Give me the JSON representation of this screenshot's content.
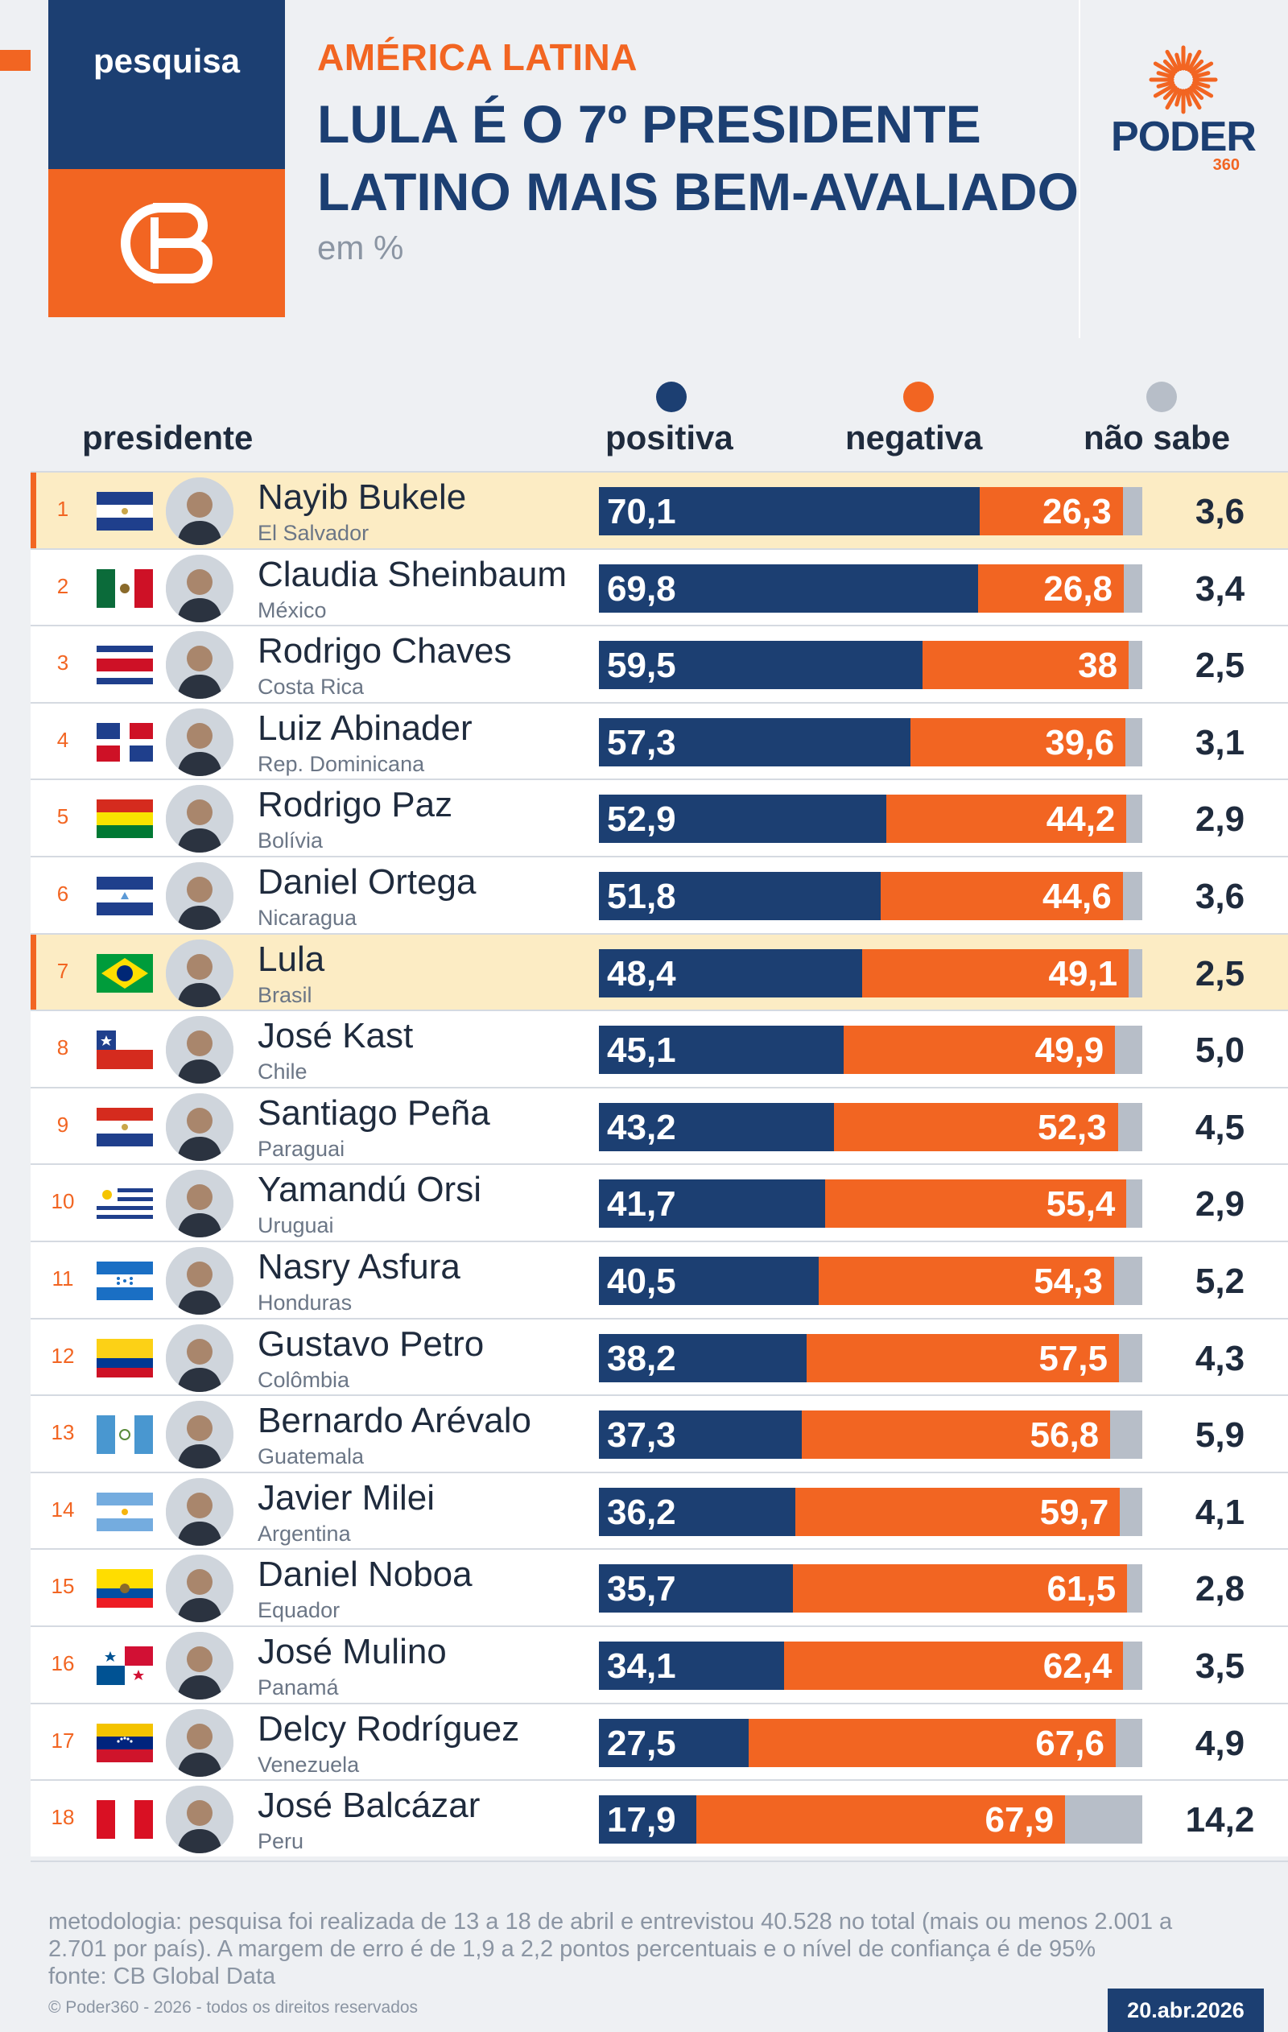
{
  "header": {
    "tag": "pesquisa",
    "kicker": "AMÉRICA LATINA",
    "title_line1": "LULA É O 7º PRESIDENTE",
    "title_line2": "LATINO MAIS BEM-AVALIADO",
    "subtitle": "em %",
    "brand_word": "PODER",
    "brand_number": "360",
    "brand_icon": "sun-burst-icon",
    "badge_icon": "cb-monogram-icon"
  },
  "columns": {
    "president": "presidente",
    "positive": "positiva",
    "negative": "negativa",
    "unknown": "não sabe"
  },
  "colors": {
    "positive": "#1c3f72",
    "negative": "#f26522",
    "unknown": "#b7bec8",
    "highlight": "#fcecc4"
  },
  "chart_data": {
    "type": "bar",
    "stacked": true,
    "orientation": "horizontal",
    "title": "LULA É O 7º PRESIDENTE LATINO MAIS BEM-AVALIADO",
    "subtitle": "em %",
    "series_names": [
      "positiva",
      "negativa",
      "não sabe"
    ],
    "rows": [
      {
        "rank": "1",
        "name": "Nayib Bukele",
        "country": "El Salvador",
        "flag": "flag-el-salvador",
        "positive": "70,1",
        "negative": "26,3",
        "unknown": "3,6",
        "highlight": true
      },
      {
        "rank": "2",
        "name": "Claudia Sheinbaum",
        "country": "México",
        "flag": "flag-mexico",
        "positive": "69,8",
        "negative": "26,8",
        "unknown": "3,4",
        "highlight": false
      },
      {
        "rank": "3",
        "name": "Rodrigo Chaves",
        "country": "Costa Rica",
        "flag": "flag-costa-rica",
        "positive": "59,5",
        "negative": "38",
        "unknown": "2,5",
        "highlight": false
      },
      {
        "rank": "4",
        "name": "Luiz Abinader",
        "country": "Rep. Dominicana",
        "flag": "flag-dominican-republic",
        "positive": "57,3",
        "negative": "39,6",
        "unknown": "3,1",
        "highlight": false
      },
      {
        "rank": "5",
        "name": "Rodrigo Paz",
        "country": "Bolívia",
        "flag": "flag-bolivia",
        "positive": "52,9",
        "negative": "44,2",
        "unknown": "2,9",
        "highlight": false
      },
      {
        "rank": "6",
        "name": "Daniel Ortega",
        "country": "Nicaragua",
        "flag": "flag-nicaragua",
        "positive": "51,8",
        "negative": "44,6",
        "unknown": "3,6",
        "highlight": false
      },
      {
        "rank": "7",
        "name": "Lula",
        "country": "Brasil",
        "flag": "flag-brazil",
        "positive": "48,4",
        "negative": "49,1",
        "unknown": "2,5",
        "highlight": true
      },
      {
        "rank": "8",
        "name": "José Kast",
        "country": "Chile",
        "flag": "flag-chile",
        "positive": "45,1",
        "negative": "49,9",
        "unknown": "5,0",
        "highlight": false
      },
      {
        "rank": "9",
        "name": "Santiago Peña",
        "country": "Paraguai",
        "flag": "flag-paraguay",
        "positive": "43,2",
        "negative": "52,3",
        "unknown": "4,5",
        "highlight": false
      },
      {
        "rank": "10",
        "name": "Yamandú Orsi",
        "country": "Uruguai",
        "flag": "flag-uruguay",
        "positive": "41,7",
        "negative": "55,4",
        "unknown": "2,9",
        "highlight": false
      },
      {
        "rank": "11",
        "name": "Nasry Asfura",
        "country": "Honduras",
        "flag": "flag-honduras",
        "positive": "40,5",
        "negative": "54,3",
        "unknown": "5,2",
        "highlight": false
      },
      {
        "rank": "12",
        "name": "Gustavo Petro",
        "country": "Colômbia",
        "flag": "flag-colombia",
        "positive": "38,2",
        "negative": "57,5",
        "unknown": "4,3",
        "highlight": false
      },
      {
        "rank": "13",
        "name": "Bernardo Arévalo",
        "country": "Guatemala",
        "flag": "flag-guatemala",
        "positive": "37,3",
        "negative": "56,8",
        "unknown": "5,9",
        "highlight": false
      },
      {
        "rank": "14",
        "name": "Javier Milei",
        "country": "Argentina",
        "flag": "flag-argentina",
        "positive": "36,2",
        "negative": "59,7",
        "unknown": "4,1",
        "highlight": false
      },
      {
        "rank": "15",
        "name": "Daniel Noboa",
        "country": "Equador",
        "flag": "flag-ecuador",
        "positive": "35,7",
        "negative": "61,5",
        "unknown": "2,8",
        "highlight": false
      },
      {
        "rank": "16",
        "name": "José Mulino",
        "country": "Panamá",
        "flag": "flag-panama",
        "positive": "34,1",
        "negative": "62,4",
        "unknown": "3,5",
        "highlight": false
      },
      {
        "rank": "17",
        "name": "Delcy Rodríguez",
        "country": "Venezuela",
        "flag": "flag-venezuela",
        "positive": "27,5",
        "negative": "67,6",
        "unknown": "4,9",
        "highlight": false
      },
      {
        "rank": "18",
        "name": "José Balcázar",
        "country": "Peru",
        "flag": "flag-peru",
        "positive": "17,9",
        "negative": "67,9",
        "unknown": "14,2",
        "highlight": false
      }
    ]
  },
  "footer": {
    "methodology": "metodologia: pesquisa foi realizada de 13 a 18 de abril e entrevistou 40.528 no total (mais ou menos 2.001 a 2.701 por país). A margem de erro é de 1,9 a 2,2 pontos percentuais e o nível de confiança é de 95%",
    "source": "fonte: CB Global Data",
    "copyright": "© Poder360 - 2026 - todos os direitos reservados",
    "date": "20.abr.2026"
  }
}
